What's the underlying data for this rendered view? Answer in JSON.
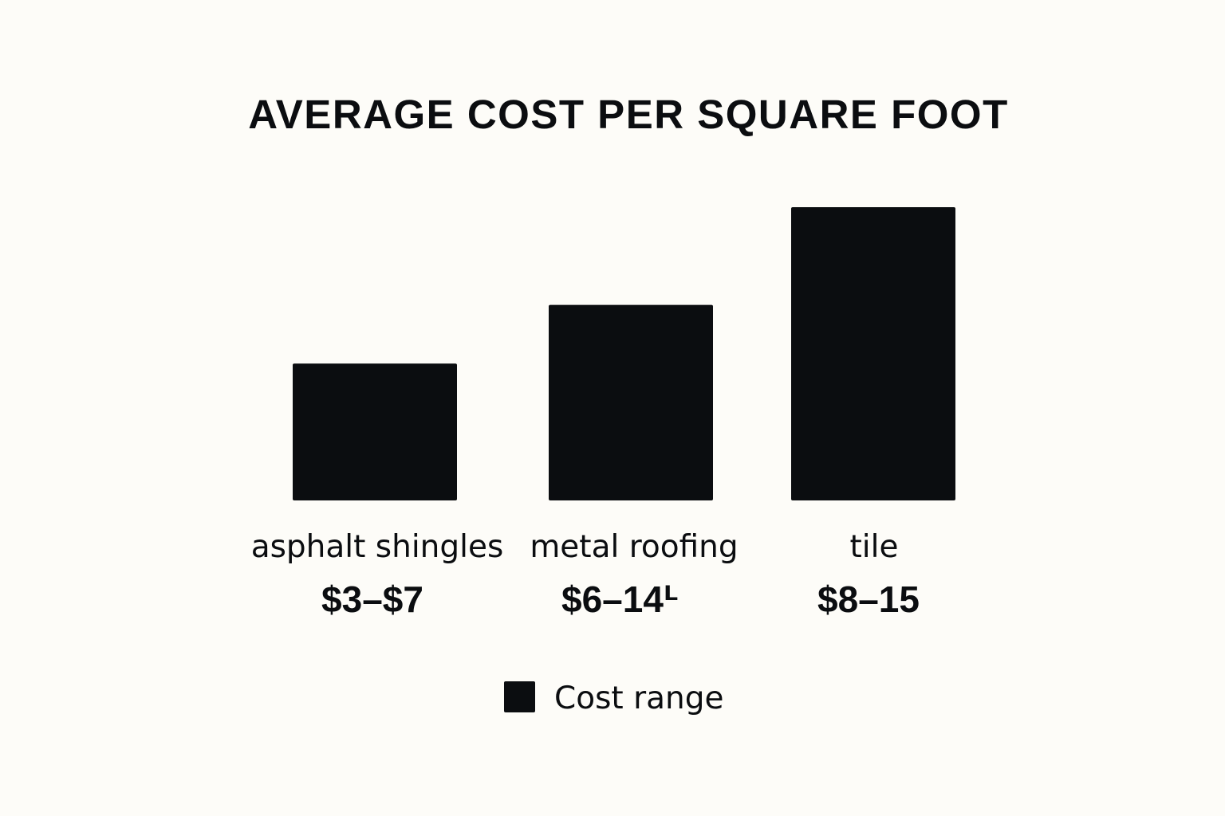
{
  "colors": {
    "background": "#fdfcf8",
    "bar": "#0b0d10",
    "text": "#0b0d10"
  },
  "chart_data": {
    "type": "bar",
    "title": "AVERAGE COST PER SQUARE FOOT",
    "xlabel": "",
    "ylabel": "",
    "categories": [
      "asphalt shingles",
      "metal roofing",
      "tile"
    ],
    "value_labels": [
      "$3–$7",
      "$6–14ᒻ",
      "$8–15"
    ],
    "series": [
      {
        "name": "Cost range",
        "values": [
          7,
          10,
          15
        ]
      }
    ],
    "legend": {
      "position": "bottom-center",
      "entries": [
        "Cost range"
      ]
    },
    "grid": false
  }
}
